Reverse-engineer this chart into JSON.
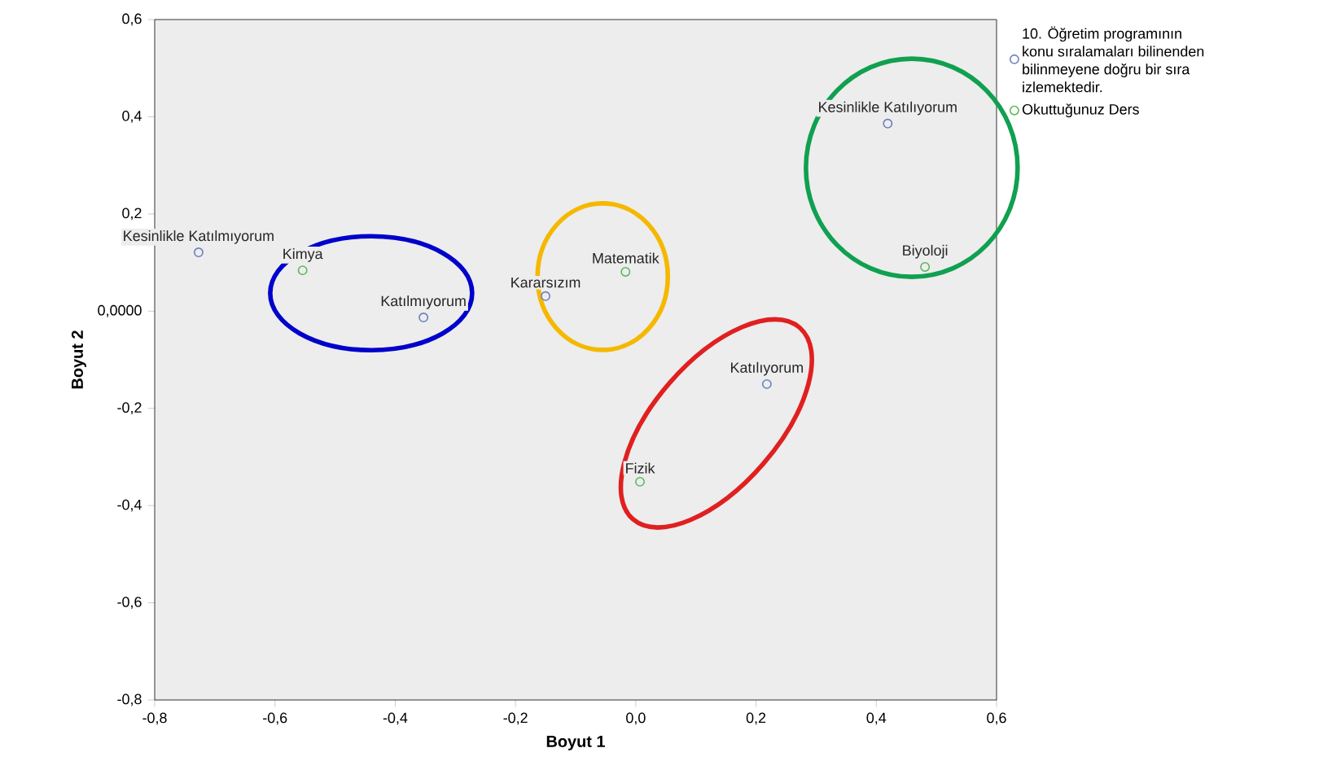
{
  "chart_data": {
    "type": "scatter",
    "xlabel": "Boyut 1",
    "ylabel": "Boyut 2",
    "xlim": [
      -0.8,
      0.6
    ],
    "ylim": [
      -0.8,
      0.6
    ],
    "xticks": [
      {
        "value": -0.8,
        "label": "-0,8"
      },
      {
        "value": -0.6,
        "label": "-0,6"
      },
      {
        "value": -0.4,
        "label": "-0,4"
      },
      {
        "value": -0.2,
        "label": "-0,2"
      },
      {
        "value": 0,
        "label": "0,0"
      },
      {
        "value": 0.2,
        "label": "0,2"
      },
      {
        "value": 0.4,
        "label": "0,4"
      },
      {
        "value": 0.6,
        "label": "0,6"
      }
    ],
    "yticks": [
      {
        "value": -0.8,
        "label": "-0,8"
      },
      {
        "value": -0.6,
        "label": "-0,6"
      },
      {
        "value": -0.4,
        "label": "-0,4"
      },
      {
        "value": -0.2,
        "label": "-0,2"
      },
      {
        "value": 0,
        "label": "0,0000"
      },
      {
        "value": 0.2,
        "label": "0,2"
      },
      {
        "value": 0.4,
        "label": "0,4"
      },
      {
        "value": 0.6,
        "label": "0,6"
      }
    ],
    "marker": "circle",
    "legend": "top right",
    "grid": false,
    "series": [
      {
        "name": "10. Öğretim programının konu sıralamaları bilinenden bilinmeyene doğru bir sıra izlemektedir.",
        "color": "#6a7fc0",
        "x": [
          -0.727,
          -0.353,
          -0.15,
          0.218,
          0.419
        ],
        "values": [
          0.121,
          -0.013,
          0.031,
          -0.15,
          0.386
        ]
      },
      {
        "name": "Okuttuğunuz Ders",
        "color": "#5cb85c",
        "x": [
          -0.554,
          -0.017,
          0.007,
          0.481
        ],
        "values": [
          0.084,
          0.081,
          -0.351,
          0.091
        ]
      }
    ],
    "annotations": [
      {
        "text": "Kesinlikle Katılmıyorum",
        "x": -0.727,
        "y": 0.121
      },
      {
        "text": "Katılmıyorum",
        "x": -0.353,
        "y": -0.013
      },
      {
        "text": "Kararsızım",
        "x": -0.15,
        "y": 0.031
      },
      {
        "text": "Katılıyorum",
        "x": 0.218,
        "y": -0.15
      },
      {
        "text": "Kesinlikle Katılıyorum",
        "x": 0.419,
        "y": 0.386
      },
      {
        "text": "Kimya",
        "x": -0.554,
        "y": 0.084
      },
      {
        "text": "Matematik",
        "x": -0.017,
        "y": 0.081
      },
      {
        "text": "Fizik",
        "x": 0.007,
        "y": -0.351
      },
      {
        "text": "Biyoloji",
        "x": 0.481,
        "y": 0.091
      }
    ]
  }
}
